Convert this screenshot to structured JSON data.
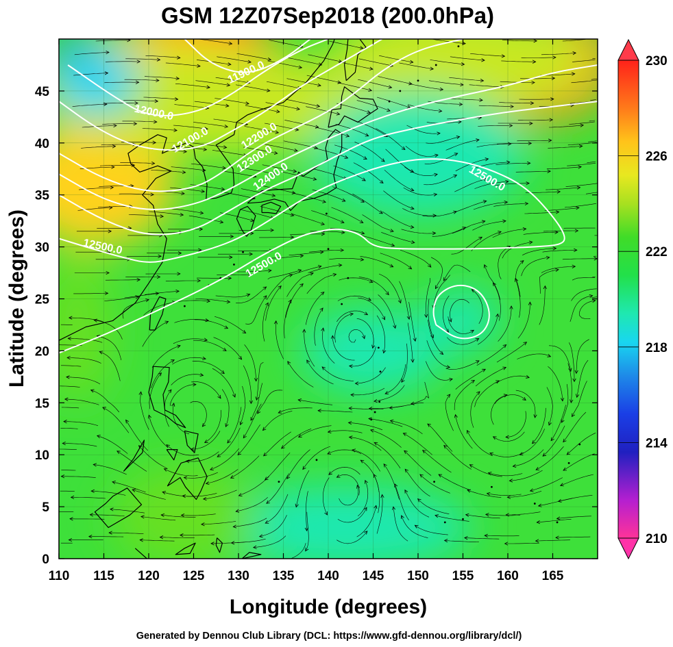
{
  "title": "GSM 12Z07Sep2018 (200.0hPa)",
  "footer": "Generated by Dennou Club Library (DCL: https://www.gfd-dennou.org/library/dcl/)",
  "axes": {
    "xlabel": "Longitude (degrees)",
    "ylabel": "Latitude  (degrees)",
    "xlim": [
      110,
      170
    ],
    "ylim": [
      0,
      50
    ],
    "xticks": [
      "110",
      "115",
      "120",
      "125",
      "130",
      "135",
      "140",
      "145",
      "150",
      "155",
      "160",
      "165"
    ],
    "yticks": [
      "0",
      "5",
      "10",
      "15",
      "20",
      "25",
      "30",
      "35",
      "40",
      "45"
    ]
  },
  "colorbar": {
    "labels": [
      "230",
      "226",
      "222",
      "218",
      "214",
      "210"
    ],
    "range": [
      210,
      230
    ],
    "colors": [
      "#ff3399",
      "#7a1fd6",
      "#1a2bd6",
      "#1e7de6",
      "#19d6f0",
      "#1fe8b0",
      "#22e04a",
      "#66e020",
      "#c8e820",
      "#ffd21a",
      "#ff8a1a",
      "#ff2a1a"
    ]
  },
  "contour_labels": [
    {
      "text": "11900.0",
      "lon": 131.0,
      "lat": 46.5,
      "angle": -25
    },
    {
      "text": "12000.0",
      "lon": 120.5,
      "lat": 42.6,
      "angle": 12
    },
    {
      "text": "12100.0",
      "lon": 124.8,
      "lat": 40.0,
      "angle": -30
    },
    {
      "text": "12200.0",
      "lon": 132.5,
      "lat": 40.4,
      "angle": -32
    },
    {
      "text": "12300.0",
      "lon": 132.0,
      "lat": 38.2,
      "angle": -33
    },
    {
      "text": "12400.0",
      "lon": 133.8,
      "lat": 36.5,
      "angle": -35
    },
    {
      "text": "12500.0",
      "lon": 157.5,
      "lat": 36.3,
      "angle": 30
    },
    {
      "text": "12500.0",
      "lon": 114.8,
      "lat": 29.7,
      "angle": 12
    },
    {
      "text": "12500.0",
      "lon": 133.0,
      "lat": 28.0,
      "angle": -30
    }
  ],
  "contours": [
    {
      "name": "11900",
      "points": [
        [
          124,
          50
        ],
        [
          127,
          47.5
        ],
        [
          131,
          46.5
        ],
        [
          135,
          48
        ],
        [
          138,
          50
        ]
      ]
    },
    {
      "name": "12000",
      "points": [
        [
          111,
          47.5
        ],
        [
          116,
          44.5
        ],
        [
          120,
          42.5
        ],
        [
          125,
          42.8
        ],
        [
          129,
          44.5
        ],
        [
          133,
          47
        ],
        [
          137,
          49
        ],
        [
          140,
          50
        ]
      ]
    },
    {
      "name": "12100",
      "points": [
        [
          110,
          44
        ],
        [
          114,
          41.5
        ],
        [
          118,
          39.8
        ],
        [
          122,
          39.2
        ],
        [
          126,
          39.6
        ],
        [
          129,
          41
        ],
        [
          133,
          43
        ],
        [
          137,
          45.5
        ],
        [
          141,
          47.5
        ],
        [
          144,
          49
        ],
        [
          146,
          50
        ]
      ]
    },
    {
      "name": "12200",
      "points": [
        [
          110,
          39
        ],
        [
          115,
          36.5
        ],
        [
          120,
          35.2
        ],
        [
          125,
          35.6
        ],
        [
          128,
          37
        ],
        [
          132,
          39.6
        ],
        [
          136,
          41.3
        ],
        [
          140,
          43
        ],
        [
          143,
          44.8
        ],
        [
          146,
          47
        ],
        [
          150,
          49
        ],
        [
          155,
          50
        ]
      ]
    },
    {
      "name": "12300",
      "points": [
        [
          110,
          37
        ],
        [
          115,
          34.5
        ],
        [
          120,
          33.4
        ],
        [
          125,
          34.0
        ],
        [
          129,
          35.5
        ],
        [
          133,
          37.5
        ],
        [
          137,
          39.2
        ],
        [
          141,
          40.8
        ],
        [
          145,
          42.2
        ],
        [
          150,
          43.6
        ],
        [
          155,
          44.6
        ],
        [
          160,
          45.5
        ],
        [
          165,
          46.8
        ],
        [
          170,
          47.5
        ]
      ]
    },
    {
      "name": "12400",
      "points": [
        [
          110,
          35
        ],
        [
          115,
          32.5
        ],
        [
          120,
          31.0
        ],
        [
          125,
          31.5
        ],
        [
          129,
          33.5
        ],
        [
          133,
          35.5
        ],
        [
          137,
          37
        ],
        [
          141,
          38.8
        ],
        [
          145,
          40.5
        ],
        [
          150,
          41.5
        ],
        [
          155,
          42.3
        ],
        [
          160,
          43.0
        ],
        [
          165,
          43.5
        ],
        [
          170,
          44
        ]
      ]
    },
    {
      "name": "12500-main",
      "points": [
        [
          110,
          19.8
        ],
        [
          115,
          21.5
        ],
        [
          120,
          23.5
        ],
        [
          125,
          25.5
        ],
        [
          129,
          27.3
        ],
        [
          133,
          29.4
        ],
        [
          137,
          31.1
        ],
        [
          139,
          31.5
        ],
        [
          141,
          31.8
        ],
        [
          143.5,
          31.3
        ],
        [
          145,
          30.0
        ],
        [
          148,
          29.8
        ],
        [
          152,
          29.8
        ],
        [
          156,
          29.8
        ],
        [
          160,
          29.9
        ],
        [
          163,
          30.0
        ],
        [
          166,
          30.2
        ],
        [
          166.5,
          31.0
        ],
        [
          165,
          33.0
        ],
        [
          162,
          35.8
        ],
        [
          158,
          37.5
        ],
        [
          154,
          38.4
        ],
        [
          150,
          38.5
        ],
        [
          146,
          37.8
        ],
        [
          142,
          36.6
        ],
        [
          139,
          35.5
        ],
        [
          136,
          34.0
        ],
        [
          133,
          32.3
        ],
        [
          130,
          30.8
        ],
        [
          127,
          29.8
        ],
        [
          123,
          28.9
        ],
        [
          120,
          28.4
        ],
        [
          117,
          29.0
        ],
        [
          113,
          30.0
        ],
        [
          110,
          30.8
        ]
      ]
    },
    {
      "name": "12500-ring",
      "points": [
        [
          152,
          22.5
        ],
        [
          154.5,
          21.0
        ],
        [
          157.2,
          21.5
        ],
        [
          158.2,
          23.5
        ],
        [
          157.0,
          25.8
        ],
        [
          154.5,
          26.5
        ],
        [
          152.2,
          25.5
        ],
        [
          151.6,
          23.8
        ],
        [
          152,
          22.5
        ]
      ]
    }
  ],
  "color_blobs": [
    {
      "lon": 127,
      "lat": 49,
      "rx": 6.5,
      "ry": 5.5,
      "color": "#ff2a1a"
    },
    {
      "lon": 125,
      "lat": 47,
      "rx": 10,
      "ry": 6,
      "color": "#ff8a1a"
    },
    {
      "lon": 122,
      "lat": 45,
      "rx": 14,
      "ry": 6,
      "color": "#ffd21a"
    },
    {
      "lon": 113,
      "lat": 37,
      "rx": 5.5,
      "ry": 3.5,
      "color": "#ff8a1a"
    },
    {
      "lon": 114,
      "lat": 36,
      "rx": 9,
      "ry": 6,
      "color": "#ffd21a"
    },
    {
      "lon": 167,
      "lat": 48,
      "rx": 5,
      "ry": 4.5,
      "color": "#ff2a1a"
    },
    {
      "lon": 163,
      "lat": 47,
      "rx": 9,
      "ry": 5,
      "color": "#ff8a1a"
    },
    {
      "lon": 155,
      "lat": 48,
      "rx": 15,
      "ry": 5,
      "color": "#c8e820"
    },
    {
      "lon": 127,
      "lat": 44,
      "rx": 18,
      "ry": 5,
      "color": "#c8e820"
    },
    {
      "lon": 112,
      "lat": 48.5,
      "rx": 3,
      "ry": 2,
      "color": "#1e7de6"
    },
    {
      "lon": 114,
      "lat": 46,
      "rx": 5,
      "ry": 3.5,
      "color": "#19d6f0"
    },
    {
      "lon": 150,
      "lat": 39,
      "rx": 12,
      "ry": 6,
      "color": "#1fe8b0"
    },
    {
      "lon": 145,
      "lat": 20,
      "rx": 8,
      "ry": 4,
      "color": "#1fe8b0"
    },
    {
      "lon": 155,
      "lat": 23,
      "rx": 4,
      "ry": 3,
      "color": "#1fe8b0"
    },
    {
      "lon": 142,
      "lat": 3,
      "rx": 14,
      "ry": 4,
      "color": "#1fe8b0"
    },
    {
      "lon": 124,
      "lat": 4,
      "rx": 8,
      "ry": 5,
      "color": "#66e020"
    },
    {
      "lon": 112,
      "lat": 22,
      "rx": 4,
      "ry": 7,
      "color": "#66e020"
    }
  ],
  "vortices": [
    {
      "lon": 150.2,
      "lat": 36.2
    },
    {
      "lon": 143.0,
      "lat": 21.0
    },
    {
      "lon": 155.0,
      "lat": 23.5
    },
    {
      "lon": 160.0,
      "lat": 13.0
    },
    {
      "lon": 142.0,
      "lat": 7.5
    },
    {
      "lon": 125.0,
      "lat": 13.0
    }
  ]
}
